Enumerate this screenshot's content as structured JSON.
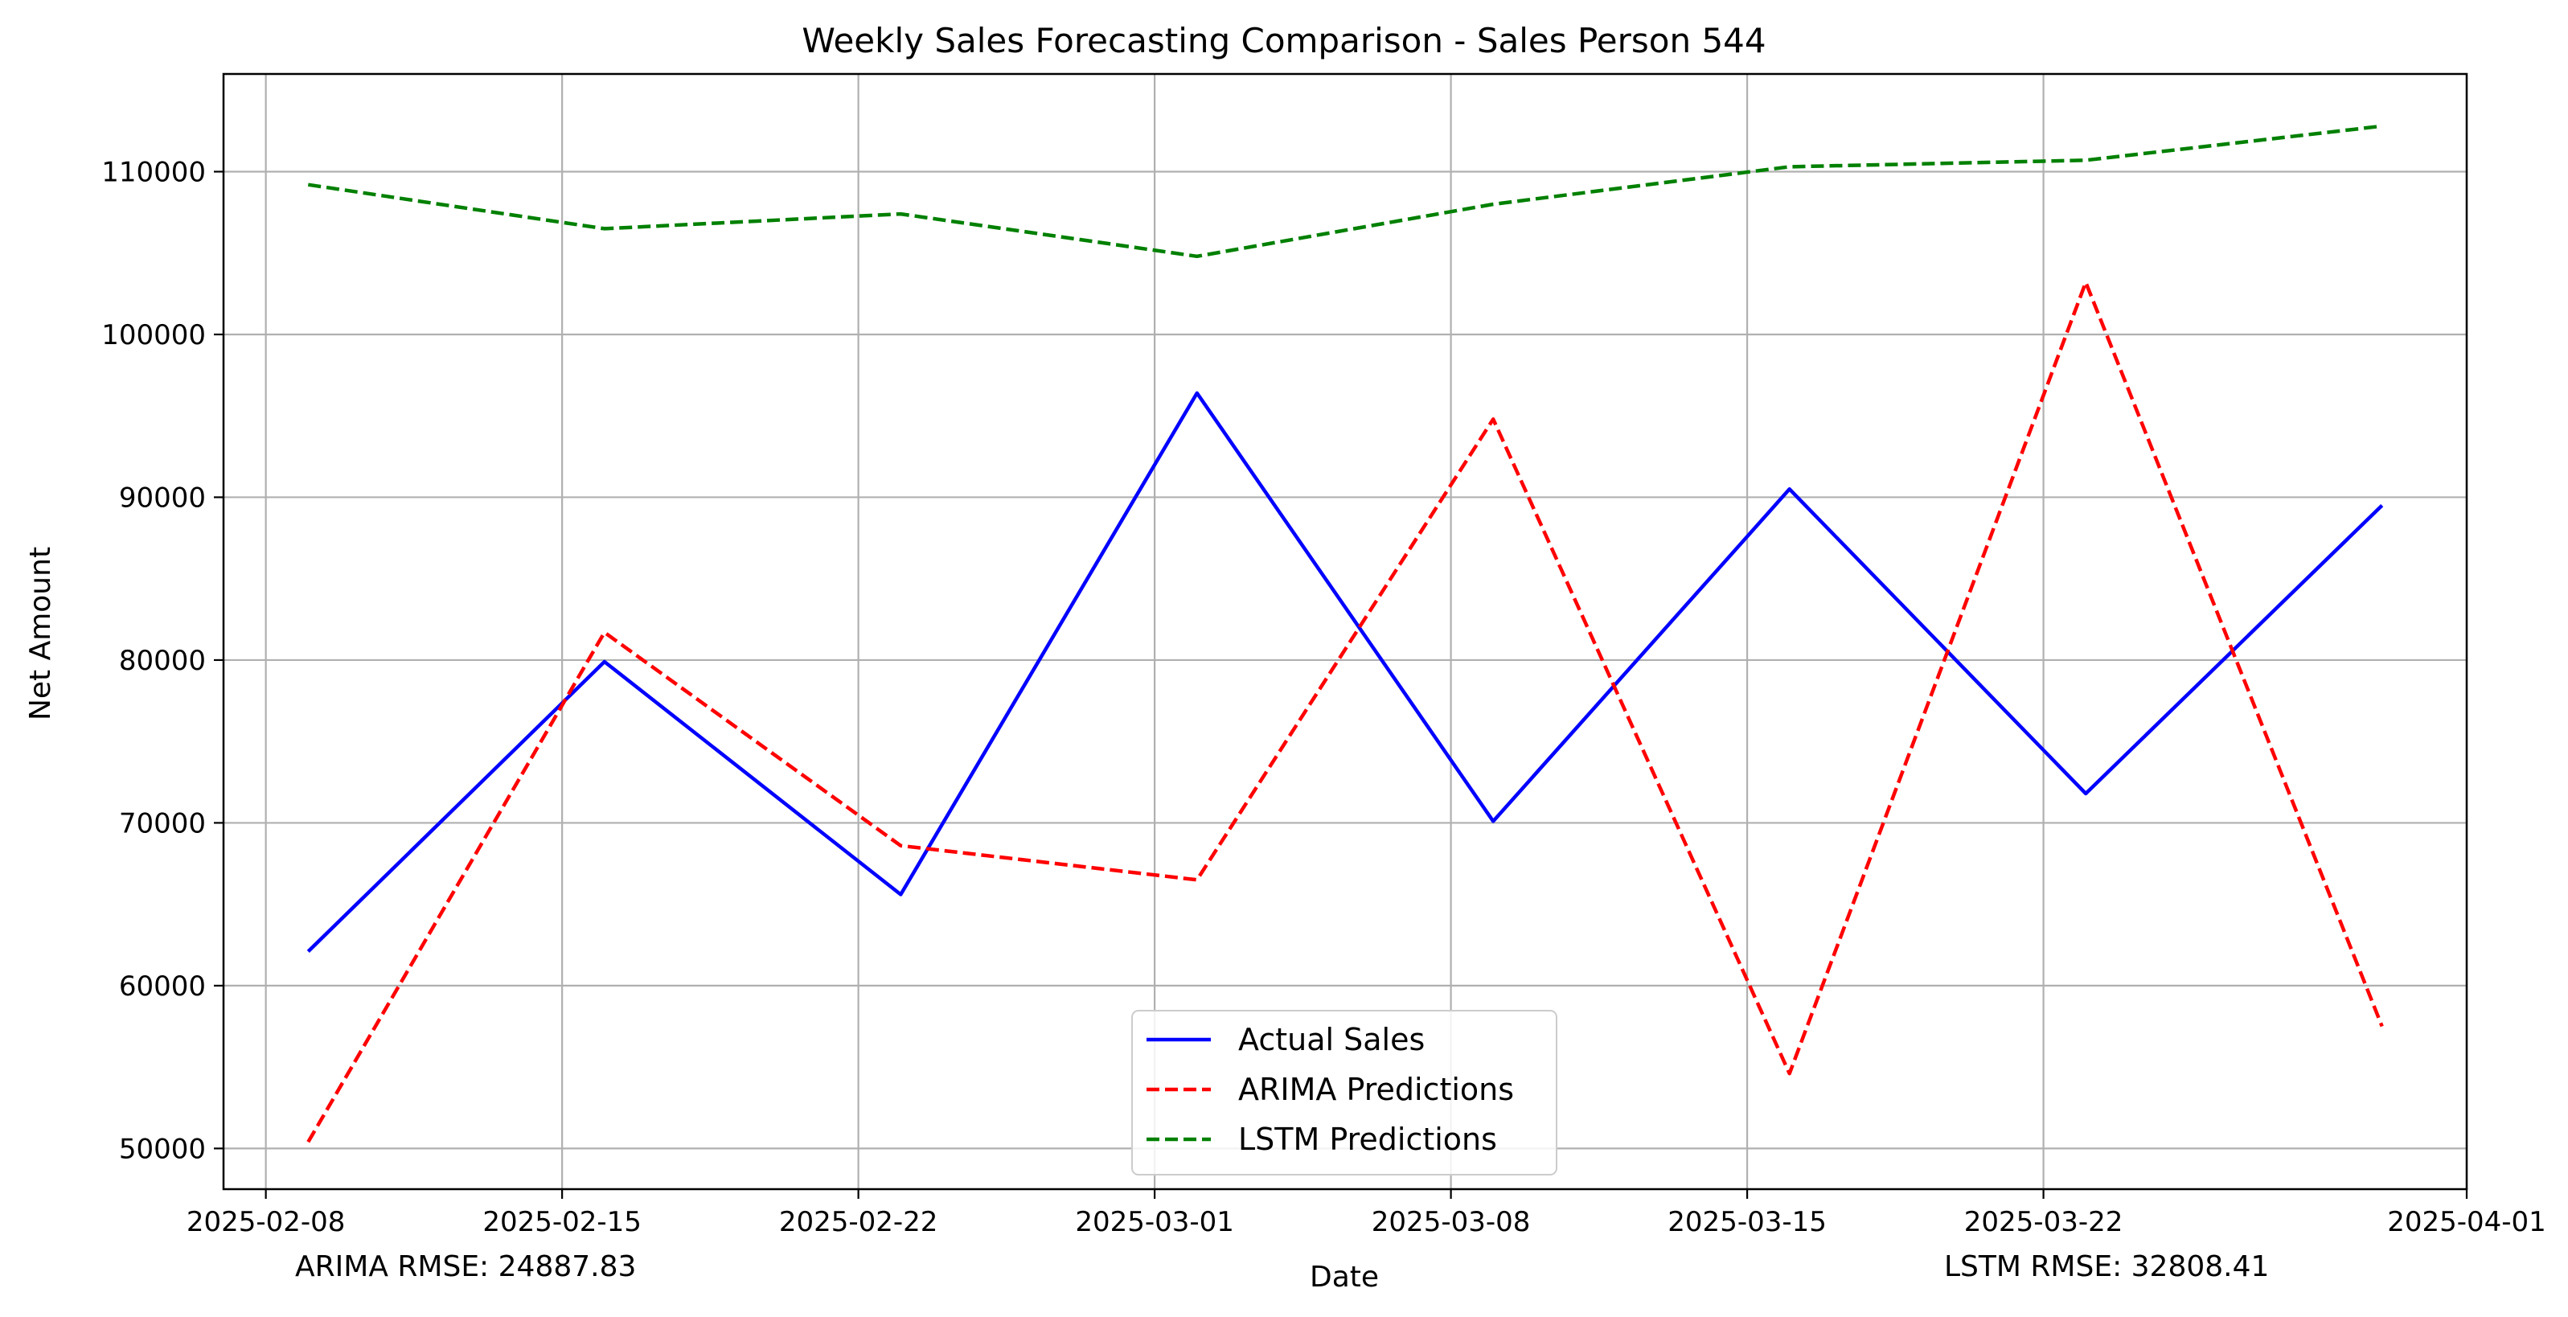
{
  "chart_data": {
    "type": "line",
    "title": "Weekly Sales Forecasting Comparison - Sales Person 544",
    "xlabel": "Date",
    "ylabel": "Net Amount",
    "x": [
      "2025-02-09",
      "2025-02-16",
      "2025-02-23",
      "2025-03-02",
      "2025-03-09",
      "2025-03-16",
      "2025-03-23",
      "2025-03-30"
    ],
    "series": [
      {
        "name": "Actual Sales",
        "color": "#0000ff",
        "style": "solid",
        "values": [
          62100,
          79900,
          65600,
          96400,
          70100,
          90500,
          71800,
          89500
        ]
      },
      {
        "name": "ARIMA Predictions",
        "color": "#ff0000",
        "style": "dashed",
        "values": [
          50400,
          81700,
          68600,
          66500,
          94800,
          54600,
          103200,
          57500
        ]
      },
      {
        "name": "LSTM Predictions",
        "color": "#008000",
        "style": "dashed",
        "values": [
          109200,
          106500,
          107400,
          104800,
          108000,
          110300,
          110700,
          112800
        ]
      }
    ],
    "xlim": [
      "2025-02-07",
      "2025-04-01"
    ],
    "ylim": [
      47500,
      116000
    ],
    "x_ticks": [
      "2025-02-08",
      "2025-02-15",
      "2025-02-22",
      "2025-03-01",
      "2025-03-08",
      "2025-03-15",
      "2025-03-22",
      "2025-04-01"
    ],
    "y_ticks": [
      50000,
      60000,
      70000,
      80000,
      90000,
      100000,
      110000
    ],
    "grid": true,
    "legend_position": "lower-center"
  },
  "annotations": {
    "arima_rmse": "ARIMA RMSE: 24887.83",
    "lstm_rmse": "LSTM RMSE: 32808.41"
  }
}
